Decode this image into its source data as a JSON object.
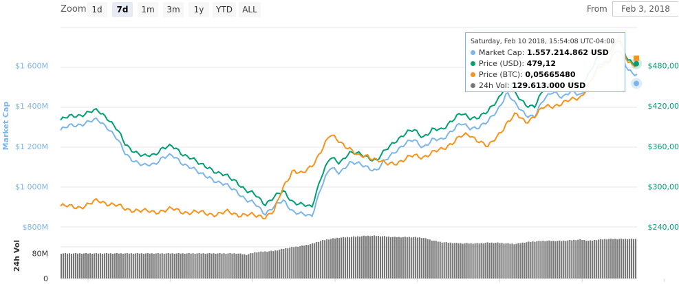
{
  "toolbar": {
    "zoom_label": "Zoom",
    "buttons": [
      "1d",
      "7d",
      "1m",
      "3m",
      "1y",
      "YTD",
      "ALL"
    ],
    "active": "7d",
    "from_label": "From",
    "from_value": "Feb 3, 2018"
  },
  "tooltip": {
    "title": "Saturday, Feb 10 2018, 15:54:08 UTC-04:00",
    "rows": [
      {
        "label": "Market Cap:",
        "value": "1.557.214.862 USD",
        "color": "#7cb5ec"
      },
      {
        "label": "Price (USD):",
        "value": "479,12",
        "color": "#009e73"
      },
      {
        "label": "Price (BTC):",
        "value": "0,05665480",
        "color": "#f7931a"
      },
      {
        "label": "24h Vol:",
        "value": "129.613.000 USD",
        "color": "#777777"
      }
    ]
  },
  "colors": {
    "market_cap": "#7cb5ec",
    "price_usd": "#009e73",
    "price_btc": "#f7931a",
    "volume": "#777777",
    "grid": "#e6e6e6"
  },
  "chart_data": {
    "type": "line",
    "x_range": [
      "2018-02-03",
      "2018-02-10"
    ],
    "axes": {
      "left": {
        "label": "Market Cap",
        "ticks": [
          "$800M",
          "$1 000M",
          "$1 200M",
          "$1 400M",
          "$1 600M"
        ],
        "range": [
          800,
          1800
        ],
        "unit": "M USD"
      },
      "right": {
        "ticks": [
          "$240,00",
          "$300,00",
          "$360,00",
          "$420,00",
          "$480,00"
        ],
        "range": [
          240,
          540
        ],
        "unit": "USD"
      },
      "volume": {
        "label": "24h Vol",
        "ticks": [
          "0",
          "80M"
        ],
        "range": [
          0,
          160
        ],
        "unit": "M USD"
      }
    },
    "grid": true,
    "series": [
      {
        "name": "Market Cap",
        "axis": "left",
        "values": [
          1280,
          1300,
          1310,
          1320,
          1330,
          1300,
          1240,
          1160,
          1130,
          1100,
          1110,
          1150,
          1150,
          1120,
          1100,
          1060,
          1050,
          1020,
          1000,
          980,
          930,
          910,
          870,
          900,
          930,
          880,
          860,
          850,
          1000,
          1090,
          1070,
          1120,
          1110,
          1100,
          1080,
          1130,
          1180,
          1210,
          1230,
          1200,
          1230,
          1230,
          1280,
          1310,
          1290,
          1300,
          1320,
          1380,
          1470,
          1400,
          1360,
          1350,
          1430,
          1480,
          1440,
          1470,
          1460,
          1520,
          1610,
          1630,
          1680,
          1580,
          1560
        ]
      },
      {
        "name": "Price (USD)",
        "axis": "right",
        "values": [
          399,
          404,
          407,
          410,
          413,
          404,
          386,
          362,
          353,
          344,
          347,
          359,
          359,
          350,
          344,
          332,
          329,
          320,
          314,
          308,
          293,
          287,
          275,
          284,
          293,
          278,
          272,
          269,
          315,
          342,
          336,
          351,
          348,
          345,
          339,
          354,
          369,
          378,
          384,
          375,
          384,
          384,
          399,
          408,
          402,
          405,
          411,
          429,
          456,
          435,
          423,
          420,
          444,
          459,
          447,
          456,
          453,
          471,
          498,
          504,
          519,
          489,
          483
        ]
      },
      {
        "name": "Price (BTC)",
        "axis": "right",
        "values": [
          271,
          270,
          270,
          273,
          279,
          276,
          272,
          266,
          266,
          263,
          262,
          265,
          266,
          263,
          262,
          261,
          260,
          259,
          262,
          259,
          258,
          256,
          256,
          264,
          300,
          326,
          318,
          330,
          354,
          376,
          368,
          358,
          344,
          347,
          340,
          333,
          336,
          340,
          346,
          345,
          350,
          355,
          365,
          374,
          377,
          369,
          358,
          376,
          395,
          407,
          397,
          405,
          418,
          421,
          424,
          429,
          435,
          455,
          478,
          488,
          524,
          485,
          483
        ]
      },
      {
        "name": "24h Vol",
        "axis": "volume",
        "values": [
          80,
          80,
          80,
          80,
          80,
          80,
          80,
          80,
          80,
          80,
          80,
          80,
          80,
          80,
          80,
          80,
          80,
          80,
          80,
          80,
          76,
          84,
          86,
          88,
          95,
          100,
          104,
          110,
          120,
          126,
          130,
          132,
          134,
          136,
          136,
          134,
          132,
          132,
          132,
          130,
          122,
          116,
          114,
          112,
          112,
          112,
          114,
          114,
          112,
          110,
          115,
          118,
          120,
          120,
          120,
          122,
          124,
          120,
          124,
          126,
          126,
          126,
          126
        ]
      }
    ]
  }
}
